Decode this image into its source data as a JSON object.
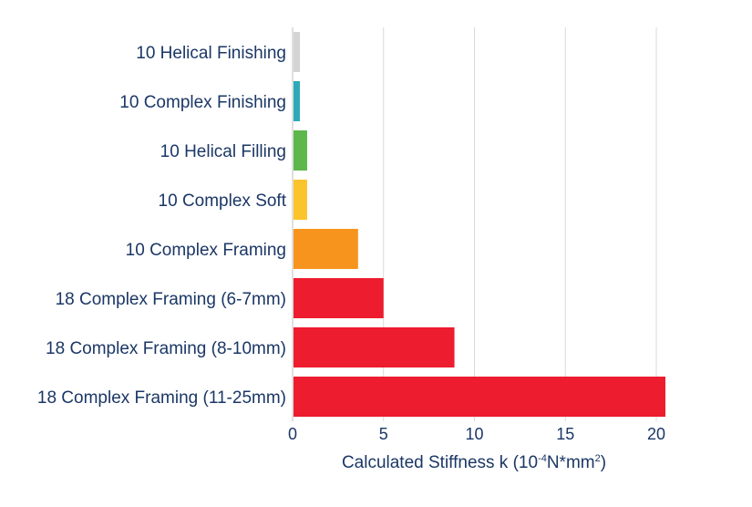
{
  "chart_data": {
    "type": "bar",
    "orientation": "horizontal",
    "categories": [
      "10 Helical Finishing",
      "10 Complex Finishing",
      "10 Helical Filling",
      "10 Complex Soft",
      "10 Complex Framing",
      "18 Complex Framing (6-7mm)",
      "18 Complex Framing (8-10mm)",
      "18 Complex Framing (11-25mm)"
    ],
    "values": [
      0.4,
      0.4,
      0.8,
      0.8,
      3.6,
      5.0,
      8.9,
      20.5
    ],
    "colors": [
      "#d4d4d4",
      "#2ea9b8",
      "#5db74a",
      "#fcc42c",
      "#f7941e",
      "#ed1c2e",
      "#ed1c2e",
      "#ed1c2e"
    ],
    "xlim": [
      0,
      21
    ],
    "xticks": [
      0,
      5,
      10,
      15,
      20
    ],
    "xlabel_parts": {
      "pre": "Calculated Stiffness k (10",
      "sup1": "-4",
      "mid": "N*mm",
      "sup2": "2",
      "post": ")"
    },
    "grid": true,
    "legend": "none"
  }
}
